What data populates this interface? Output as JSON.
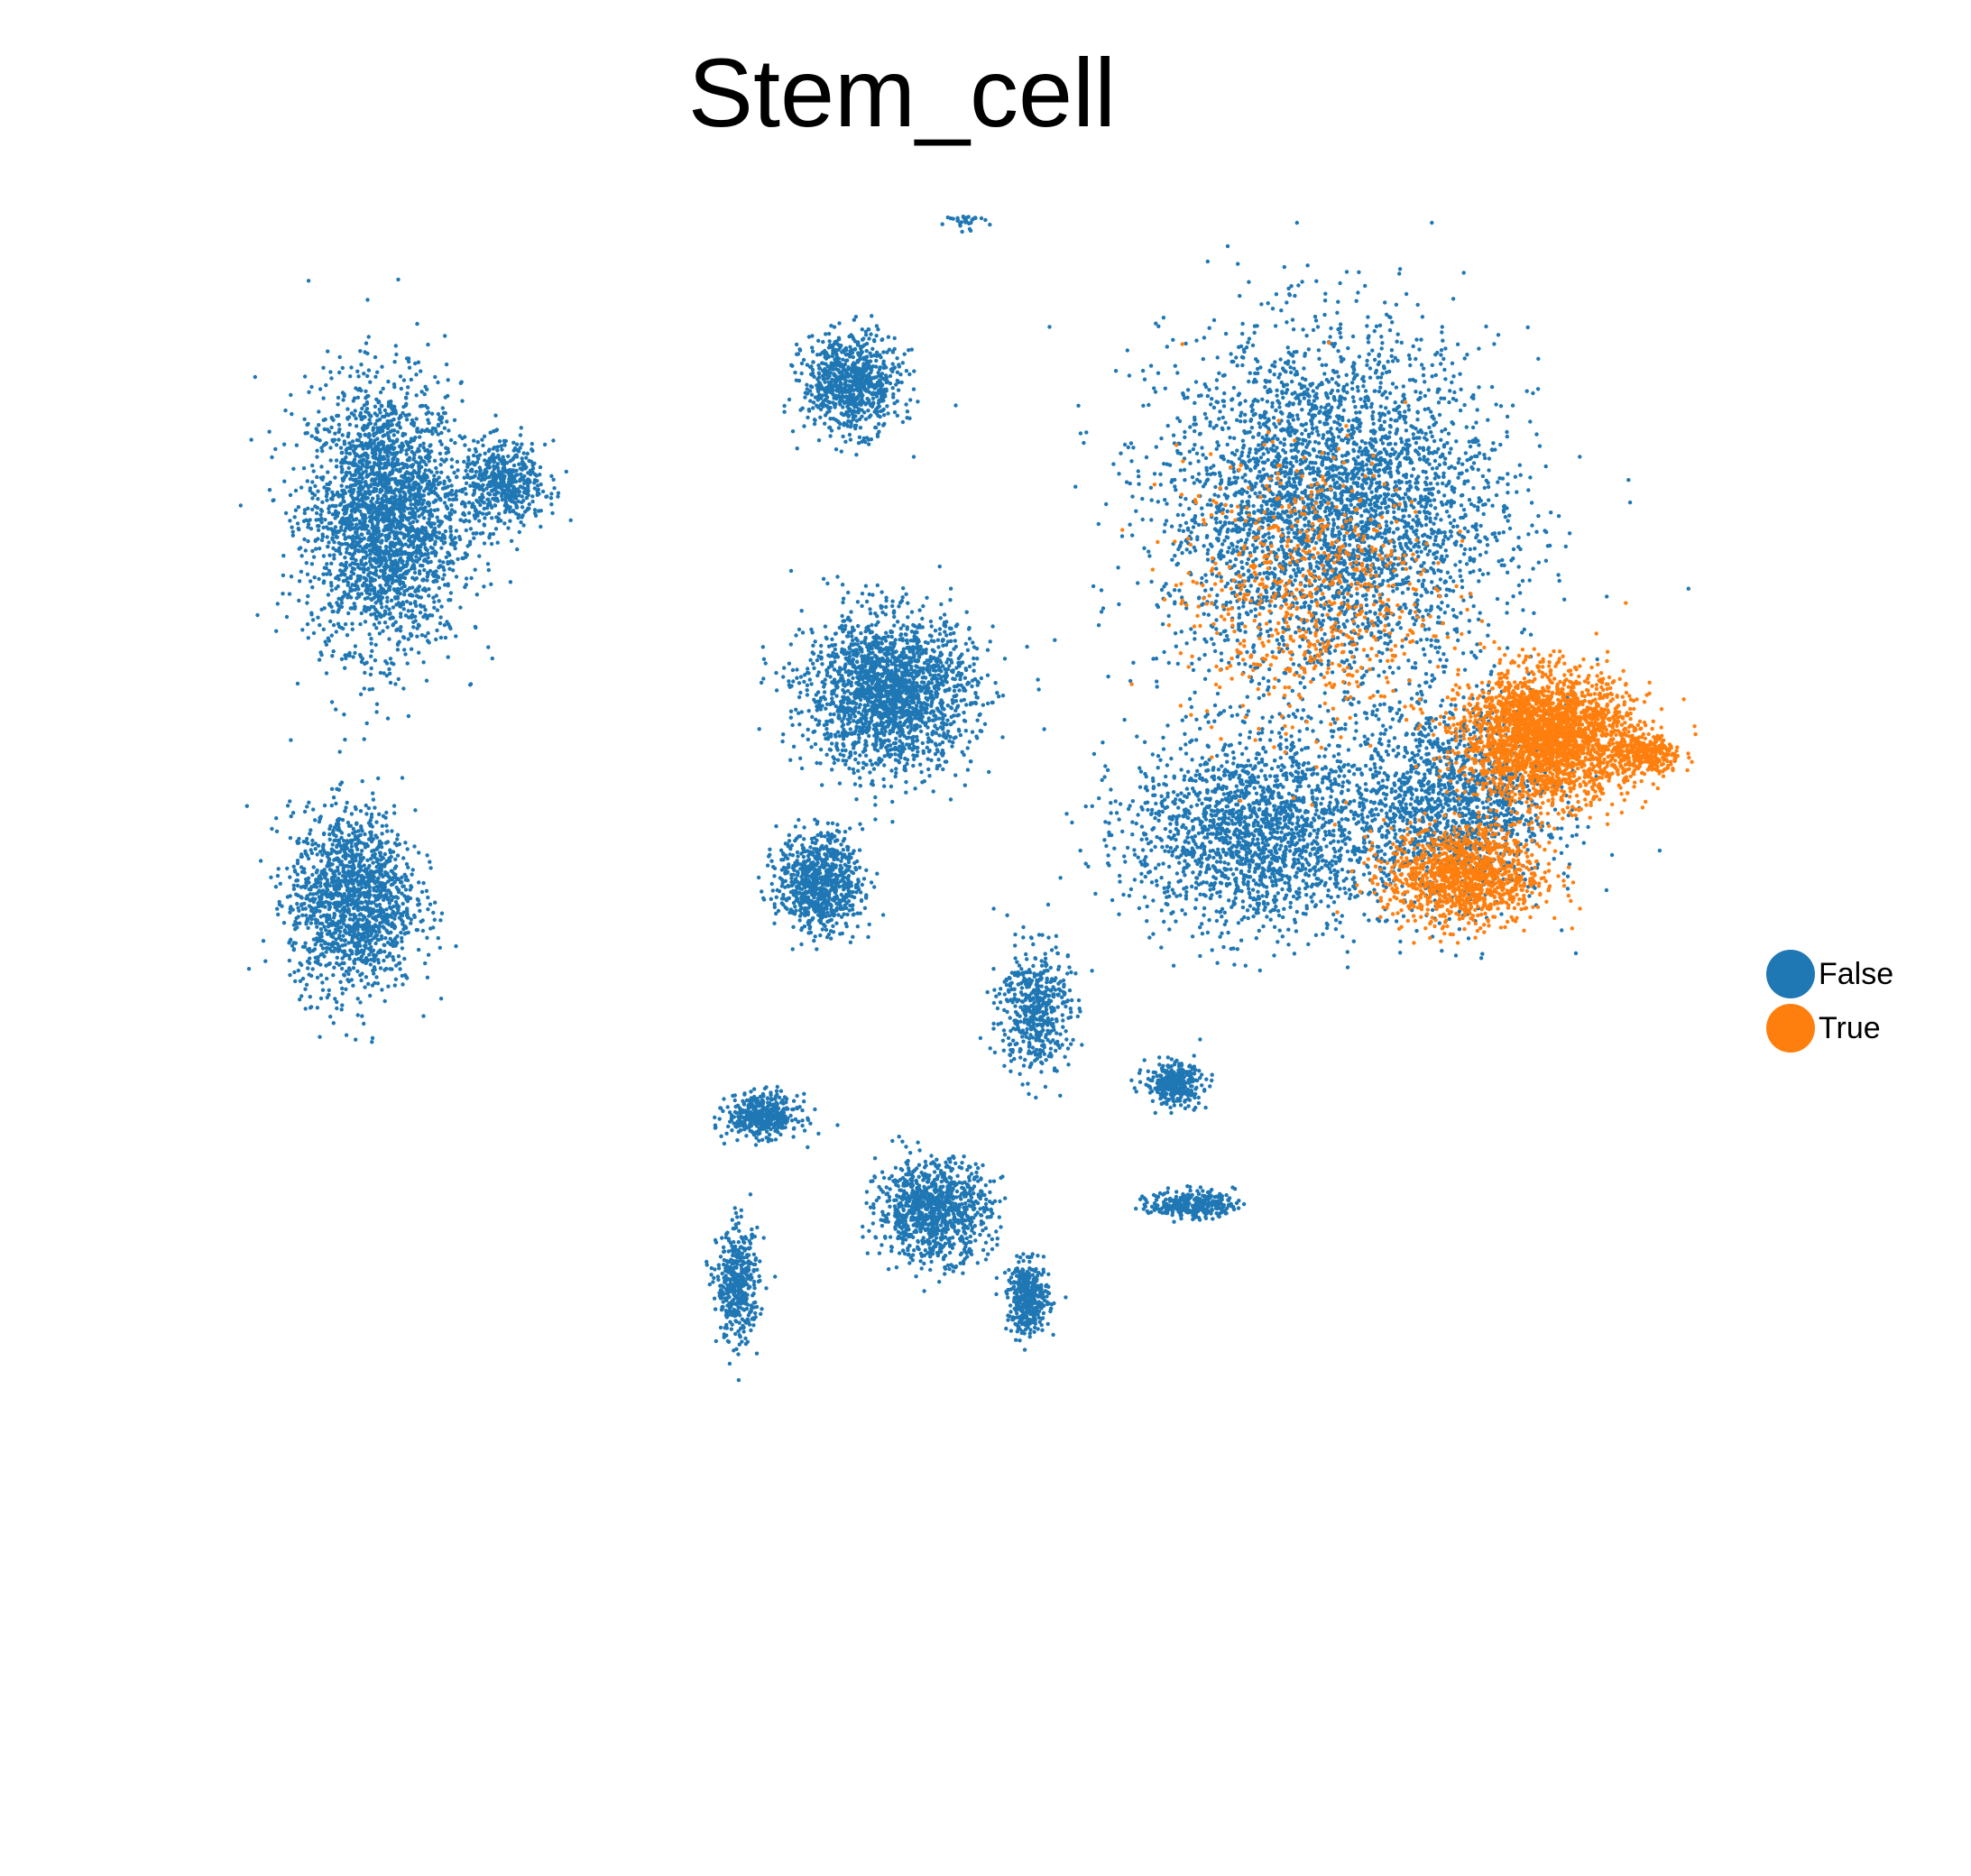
{
  "chart_data": {
    "type": "scatter",
    "title": "Stem_cell",
    "xlabel": "",
    "ylabel": "",
    "axes_visible": false,
    "grid": false,
    "legend_placement": "right",
    "series": [
      {
        "name": "False",
        "color": "#1f77b4"
      },
      {
        "name": "True",
        "color": "#ff7f0e"
      }
    ],
    "clusters": [
      {
        "series": "False",
        "center": [
          -8.2,
          8.4
        ],
        "spread": [
          1.1,
          1.9
        ],
        "count": 2600
      },
      {
        "series": "False",
        "center": [
          -6.3,
          8.9
        ],
        "spread": [
          0.6,
          0.6
        ],
        "count": 500
      },
      {
        "series": "False",
        "center": [
          -0.8,
          10.5
        ],
        "spread": [
          0.7,
          0.7
        ],
        "count": 800
      },
      {
        "series": "False",
        "center": [
          -0.2,
          5.6
        ],
        "spread": [
          1.2,
          1.1
        ],
        "count": 2000
      },
      {
        "series": "False",
        "center": [
          -1.3,
          2.6
        ],
        "spread": [
          0.6,
          0.7
        ],
        "count": 800
      },
      {
        "series": "False",
        "center": [
          -8.7,
          2.3
        ],
        "spread": [
          0.9,
          1.3
        ],
        "count": 1500
      },
      {
        "series": "False",
        "center": [
          -2.2,
          -1.1
        ],
        "spread": [
          0.5,
          0.3
        ],
        "count": 450
      },
      {
        "series": "False",
        "center": [
          0.5,
          -2.6
        ],
        "spread": [
          0.8,
          0.7
        ],
        "count": 1000
      },
      {
        "series": "False",
        "center": [
          -2.6,
          -3.8
        ],
        "spread": [
          0.3,
          0.8
        ],
        "count": 450
      },
      {
        "series": "False",
        "center": [
          2.0,
          -4.0
        ],
        "spread": [
          0.3,
          0.5
        ],
        "count": 400
      },
      {
        "series": "False",
        "center": [
          2.1,
          0.6
        ],
        "spread": [
          0.5,
          0.9
        ],
        "count": 500
      },
      {
        "series": "False",
        "center": [
          4.3,
          -0.6
        ],
        "spread": [
          0.4,
          0.3
        ],
        "count": 350
      },
      {
        "series": "False",
        "center": [
          4.6,
          -2.5
        ],
        "spread": [
          0.6,
          0.2
        ],
        "count": 300
      },
      {
        "series": "False",
        "center": [
          1.0,
          13.3
        ],
        "spread": [
          0.3,
          0.3
        ],
        "count": 150
      },
      {
        "series": "False",
        "center": [
          2.5,
          13.6
        ],
        "spread": [
          0.2,
          0.3
        ],
        "count": 150
      },
      {
        "series": "False",
        "center": [
          6.8,
          8.5
        ],
        "spread": [
          2.4,
          2.5
        ],
        "count": 3800
      },
      {
        "series": "False",
        "center": [
          5.6,
          3.4
        ],
        "spread": [
          1.8,
          1.4
        ],
        "count": 1900
      },
      {
        "series": "False",
        "center": [
          8.7,
          3.8
        ],
        "spread": [
          1.4,
          1.4
        ],
        "count": 1400
      },
      {
        "series": "True",
        "center": [
          10.2,
          4.9
        ],
        "spread": [
          1.2,
          0.9
        ],
        "count": 2600
      },
      {
        "series": "True",
        "center": [
          8.9,
          2.7
        ],
        "spread": [
          1.1,
          0.7
        ],
        "count": 1200
      },
      {
        "series": "True",
        "center": [
          6.4,
          7.2
        ],
        "spread": [
          1.8,
          2.0
        ],
        "count": 700
      },
      {
        "series": "True",
        "center": [
          11.8,
          4.6
        ],
        "spread": [
          0.5,
          0.3
        ],
        "count": 300
      }
    ]
  }
}
